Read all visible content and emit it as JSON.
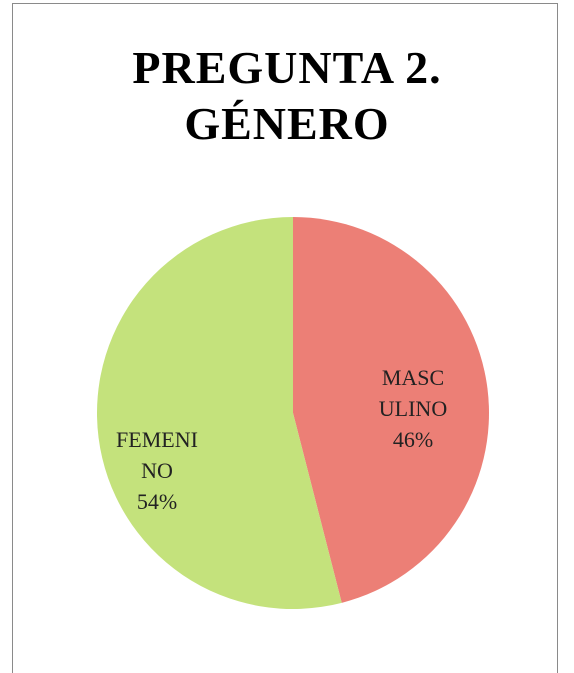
{
  "chart_data": {
    "type": "pie",
    "title": "PREGUNTA 2. GÉNERO",
    "categories": [
      "MASCULINO",
      "FEMENINO"
    ],
    "values": [
      46,
      54
    ],
    "value_labels": [
      "46%",
      "54%"
    ],
    "colors": [
      "#ec7f76",
      "#c4e27c"
    ]
  }
}
